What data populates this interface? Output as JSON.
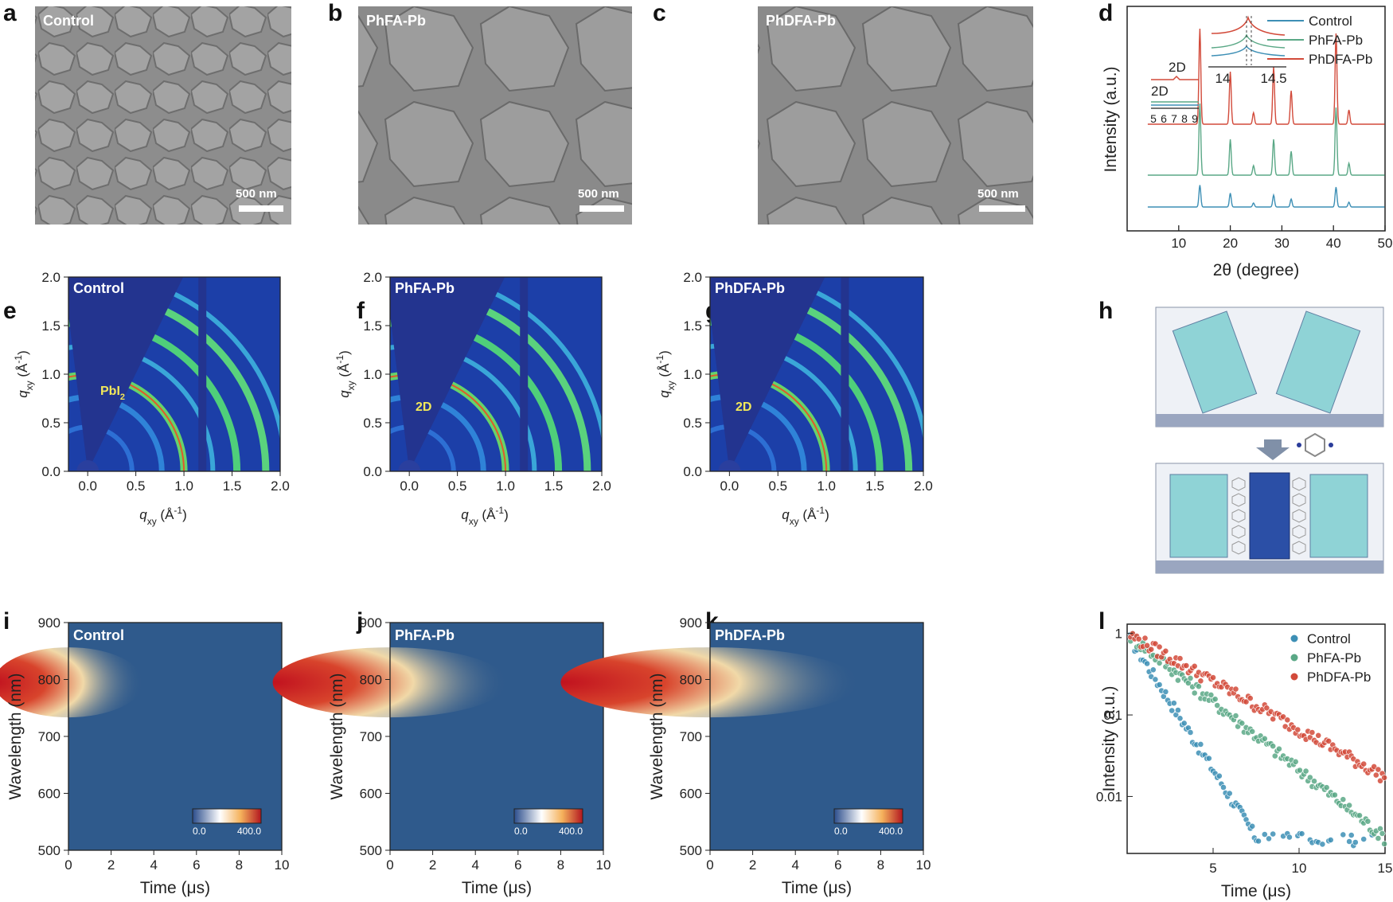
{
  "panel_labels": [
    "a",
    "b",
    "c",
    "d",
    "e",
    "f",
    "g",
    "h",
    "i",
    "j",
    "k",
    "l"
  ],
  "sem": [
    {
      "label": "Control",
      "scale": "500 nm"
    },
    {
      "label": "PhFA-Pb",
      "scale": "500 nm"
    },
    {
      "label": "PhDFA-Pb",
      "scale": "500 nm"
    }
  ],
  "colors": {
    "control": "#3d8fb5",
    "phfa": "#5aa886",
    "phdfa": "#d24a3a"
  },
  "chart_data": [
    {
      "type": "line",
      "panel": "d",
      "xlabel": "2θ (degree)",
      "ylabel": "Intensity (a.u.)",
      "xlim": [
        0,
        50
      ],
      "xticks": [
        10,
        20,
        30,
        40,
        50
      ],
      "series": [
        {
          "name": "Control",
          "peaks_x": [
            14.1,
            20.0,
            24.5,
            28.4,
            31.8,
            40.5,
            43.0
          ],
          "peaks_rel": [
            0.55,
            0.35,
            0.1,
            0.3,
            0.2,
            0.5,
            0.12
          ]
        },
        {
          "name": "PhFA-Pb",
          "peaks_x": [
            14.1,
            20.0,
            24.5,
            28.4,
            31.8,
            40.5,
            43.0
          ],
          "peaks_rel": [
            0.9,
            0.45,
            0.12,
            0.45,
            0.3,
            0.85,
            0.15
          ]
        },
        {
          "name": "PhDFA-Pb",
          "peaks_x": [
            14.1,
            20.0,
            24.5,
            28.4,
            31.8,
            40.5,
            43.0
          ],
          "peaks_rel": [
            1.0,
            0.55,
            0.12,
            0.6,
            0.35,
            0.95,
            0.15
          ]
        }
      ],
      "insets": {
        "left_label": "2D",
        "left_label2": "2D",
        "left_ticks": [
          5,
          6,
          7,
          8,
          9
        ],
        "right_ticks": [
          14.0,
          14.5
        ]
      },
      "legend": "top-right"
    },
    {
      "type": "heatmap",
      "panels": [
        "e",
        "f",
        "g"
      ],
      "labels": [
        "Control",
        "PhFA-Pb",
        "PhDFA-Pb"
      ],
      "annotations": [
        "PbI",
        "2D",
        "2D"
      ],
      "annotation_sub": "2",
      "xlabel": "q",
      "xlabel_sub": "xy",
      "xlabel_unit": " (Å",
      "xlabel_sup": "-1",
      "xlabel_close": ")",
      "ylabel": "q",
      "ylabel_sub": "xy",
      "ylabel_unit": " (Å",
      "ylabel_sup": "-1",
      "ylabel_close": ")",
      "xlim": [
        -0.2,
        2.0
      ],
      "ylim": [
        0,
        2.0
      ],
      "xticks": [
        "0.0",
        "0.5",
        "1.0",
        "1.5",
        "2.0"
      ],
      "yticks": [
        "0.0",
        "0.5",
        "1.0",
        "1.5",
        "2.0"
      ]
    },
    {
      "type": "heatmap",
      "panels": [
        "i",
        "j",
        "k"
      ],
      "labels": [
        "Control",
        "PhFA-Pb",
        "PhDFA-Pb"
      ],
      "xlabel": "Time (μs)",
      "ylabel": "Wavelength (nm)",
      "xlim": [
        0,
        10
      ],
      "ylim": [
        500,
        900
      ],
      "xticks": [
        "0",
        "2",
        "4",
        "6",
        "8",
        "10"
      ],
      "yticks": [
        "500",
        "600",
        "700",
        "800",
        "900"
      ],
      "colorbar": {
        "min": "0.0",
        "max": "400.0"
      },
      "decay_extent_us": [
        1.5,
        3.5,
        5.0
      ]
    },
    {
      "type": "scatter",
      "panel": "l",
      "xlabel": "Time (μs)",
      "ylabel": "Intensity (a.u.)",
      "xlim": [
        0,
        15
      ],
      "ylim": [
        0.002,
        1.3
      ],
      "log_y": true,
      "xticks": [
        "5",
        "10",
        "15"
      ],
      "yticks": [
        "0.01",
        "0.1",
        "1"
      ],
      "series": [
        {
          "name": "Control",
          "tau_us": 1.3,
          "floor": 0.003
        },
        {
          "name": "PhFA-Pb",
          "tau_us": 2.6,
          "floor": 0.003
        },
        {
          "name": "PhDFA-Pb",
          "tau_us": 3.7,
          "floor": 0.012
        }
      ],
      "legend": "top-right"
    }
  ]
}
